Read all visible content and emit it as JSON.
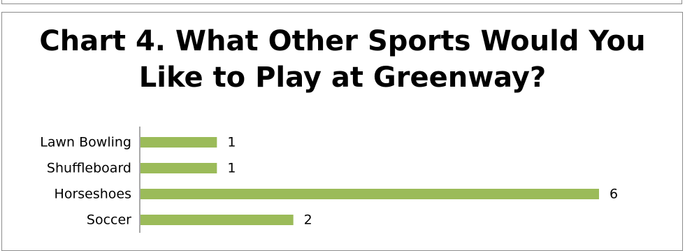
{
  "chart_data": {
    "type": "bar",
    "orientation": "horizontal",
    "title_line1": "Chart 4. What Other Sports Would You",
    "title_line2": "Like to Play at Greenway?",
    "categories": [
      "Lawn Bowling",
      "Shuffleboard",
      "Horseshoes",
      "Soccer"
    ],
    "values": [
      1,
      1,
      6,
      2
    ],
    "data_labels": [
      "1",
      "1",
      "6",
      "2"
    ],
    "xlim": [
      0,
      6
    ],
    "grid": false,
    "legend": "none",
    "bar_color": "#9bbb59"
  }
}
